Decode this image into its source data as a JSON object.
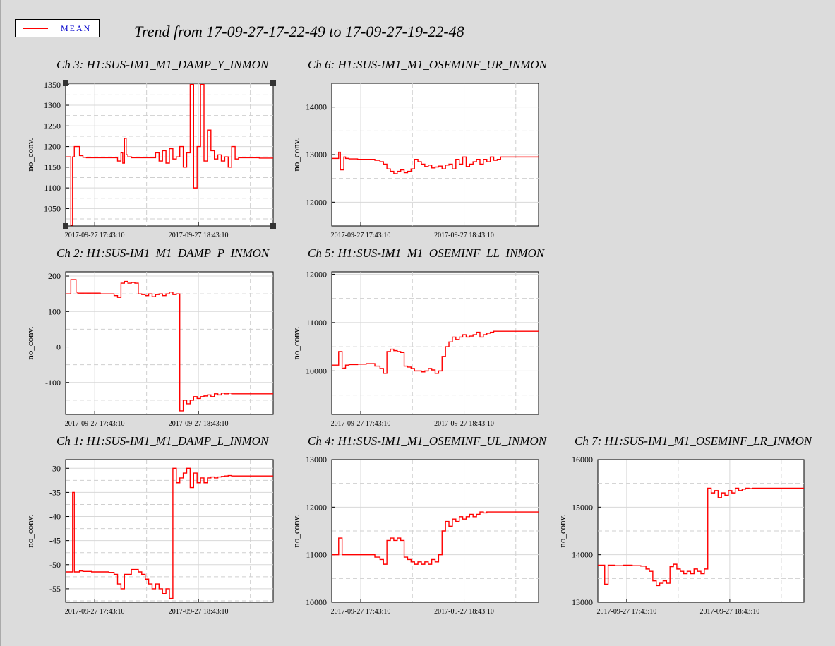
{
  "title": "Trend from 17-09-27-17-22-49 to 17-09-27-19-22-48",
  "legend": {
    "label": "MEAN",
    "color": "#ff0000"
  },
  "colors": {
    "background": "#dcdcdc",
    "series": "#ff0000",
    "plot_bg": "#ffffff"
  },
  "chart_data": [
    {
      "type": "line",
      "title": "Ch 3: H1:SUS-IM1_M1_DAMP_Y_INMON",
      "ylabel": "no_conv.",
      "xlabel": "",
      "x_ticks": [
        "2017-09-27 17:43:10",
        "2017-09-27 18:43:10"
      ],
      "y_ticks": [
        1050,
        1100,
        1150,
        1200,
        1250,
        1300,
        1350
      ],
      "ylim": [
        1008,
        1353
      ],
      "xlim": [
        0,
        120
      ],
      "grid": true,
      "selected": true,
      "series": [
        {
          "name": "MEAN",
          "x": [
            0,
            2,
            3,
            4,
            5,
            6,
            7,
            8,
            10,
            12,
            20,
            28,
            30,
            32,
            33,
            34,
            35,
            36,
            38,
            40,
            43,
            47,
            52,
            54,
            56,
            58,
            60,
            62,
            64,
            66,
            68,
            70,
            72,
            74,
            76,
            78,
            80,
            82,
            84,
            86,
            88,
            90,
            92,
            94,
            96,
            98,
            100,
            104,
            108,
            112,
            116,
            120
          ],
          "values": [
            1175,
            1175,
            1010,
            1175,
            1200,
            1200,
            1200,
            1178,
            1174,
            1173,
            1173,
            1173,
            1165,
            1185,
            1160,
            1220,
            1180,
            1175,
            1173,
            1173,
            1173,
            1173,
            1185,
            1165,
            1190,
            1160,
            1195,
            1170,
            1175,
            1200,
            1150,
            1185,
            1350,
            1100,
            1200,
            1350,
            1165,
            1240,
            1190,
            1170,
            1180,
            1165,
            1175,
            1150,
            1200,
            1170,
            1173,
            1173,
            1173,
            1172,
            1172,
            1172
          ]
        }
      ]
    },
    {
      "type": "line",
      "title": "Ch 6: H1:SUS-IM1_M1_OSEMINF_UR_INMON",
      "ylabel": "no_conv.",
      "xlabel": "",
      "x_ticks": [
        "2017-09-27 17:43:10",
        "2017-09-27 18:43:10"
      ],
      "y_ticks": [
        12000,
        13000,
        14000
      ],
      "ylim": [
        11500,
        14500
      ],
      "xlim": [
        0,
        120
      ],
      "grid": true,
      "series": [
        {
          "name": "MEAN",
          "x": [
            0,
            3,
            4,
            5,
            6,
            7,
            8,
            10,
            15,
            20,
            25,
            28,
            30,
            32,
            34,
            36,
            38,
            40,
            42,
            44,
            46,
            48,
            50,
            52,
            54,
            56,
            58,
            60,
            62,
            64,
            66,
            68,
            70,
            72,
            74,
            76,
            78,
            80,
            82,
            84,
            86,
            88,
            90,
            92,
            94,
            96,
            98,
            100,
            104,
            108,
            112,
            116,
            120
          ],
          "values": [
            12920,
            12920,
            13050,
            12680,
            12680,
            12950,
            12920,
            12910,
            12900,
            12900,
            12880,
            12850,
            12800,
            12700,
            12650,
            12600,
            12650,
            12680,
            12620,
            12650,
            12700,
            12900,
            12850,
            12800,
            12750,
            12780,
            12720,
            12740,
            12760,
            12700,
            12780,
            12800,
            12700,
            12900,
            12800,
            12950,
            12750,
            12800,
            12850,
            12900,
            12800,
            12900,
            12850,
            12950,
            12880,
            12900,
            12950,
            12950,
            12950,
            12950,
            12950,
            12950,
            12950
          ]
        }
      ]
    },
    {
      "type": "line",
      "title": "Ch 2: H1:SUS-IM1_M1_DAMP_P_INMON",
      "ylabel": "no_conv.",
      "xlabel": "",
      "x_ticks": [
        "2017-09-27 17:43:10",
        "2017-09-27 18:43:10"
      ],
      "y_ticks": [
        -100,
        0,
        100,
        200
      ],
      "ylim": [
        -190,
        212
      ],
      "xlim": [
        0,
        120
      ],
      "grid": true,
      "series": [
        {
          "name": "MEAN",
          "x": [
            0,
            2,
            3,
            4,
            5,
            6,
            7,
            10,
            15,
            20,
            25,
            28,
            30,
            32,
            34,
            36,
            38,
            40,
            42,
            44,
            46,
            48,
            50,
            52,
            54,
            56,
            58,
            60,
            62,
            64,
            66,
            68,
            70,
            72,
            74,
            76,
            78,
            80,
            82,
            84,
            86,
            88,
            90,
            92,
            94,
            96,
            98,
            100,
            104,
            108,
            112,
            116,
            120
          ],
          "values": [
            150,
            150,
            190,
            190,
            190,
            155,
            152,
            152,
            152,
            150,
            150,
            145,
            140,
            180,
            185,
            180,
            182,
            180,
            150,
            148,
            145,
            150,
            142,
            148,
            150,
            145,
            150,
            155,
            148,
            150,
            -180,
            -150,
            -160,
            -150,
            -140,
            -145,
            -140,
            -138,
            -135,
            -140,
            -132,
            -135,
            -130,
            -132,
            -130,
            -132,
            -132,
            -132,
            -132,
            -132,
            -132,
            -132,
            -132
          ]
        }
      ]
    },
    {
      "type": "line",
      "title": "Ch 5: H1:SUS-IM1_M1_OSEMINF_LL_INMON",
      "ylabel": "no_conv.",
      "xlabel": "",
      "x_ticks": [
        "2017-09-27 17:43:10",
        "2017-09-27 18:43:10"
      ],
      "y_ticks": [
        10000,
        11000,
        12000
      ],
      "ylim": [
        9100,
        12050
      ],
      "xlim": [
        0,
        120
      ],
      "grid": true,
      "series": [
        {
          "name": "MEAN",
          "x": [
            0,
            3,
            4,
            5,
            6,
            7,
            8,
            10,
            15,
            20,
            25,
            28,
            30,
            32,
            34,
            36,
            38,
            40,
            42,
            44,
            46,
            48,
            50,
            52,
            54,
            56,
            58,
            60,
            62,
            64,
            66,
            68,
            70,
            72,
            74,
            76,
            78,
            80,
            82,
            84,
            86,
            88,
            90,
            92,
            94,
            96,
            98,
            100,
            104,
            108,
            112,
            116,
            120
          ],
          "values": [
            10120,
            10120,
            10400,
            10400,
            10050,
            10060,
            10120,
            10130,
            10140,
            10150,
            10100,
            10050,
            9950,
            10400,
            10450,
            10420,
            10400,
            10380,
            10100,
            10080,
            10050,
            10000,
            10000,
            9980,
            10000,
            10050,
            10020,
            9950,
            10000,
            10300,
            10500,
            10600,
            10700,
            10650,
            10700,
            10750,
            10700,
            10720,
            10750,
            10800,
            10700,
            10750,
            10780,
            10800,
            10820,
            10820,
            10820,
            10820,
            10820,
            10820,
            10820,
            10820,
            10820
          ]
        }
      ]
    },
    {
      "type": "line",
      "title": "Ch 1: H1:SUS-IM1_M1_DAMP_L_INMON",
      "ylabel": "no_conv.",
      "xlabel": "",
      "x_ticks": [
        "2017-09-27 17:43:10",
        "2017-09-27 18:43:10"
      ],
      "y_ticks": [
        -30,
        -35,
        -40,
        -45,
        -50,
        -55
      ],
      "ylim": [
        -57.8,
        -28.2
      ],
      "xlim": [
        0,
        120
      ],
      "grid": true,
      "series": [
        {
          "name": "MEAN",
          "x": [
            0,
            3,
            4,
            5,
            6,
            8,
            10,
            15,
            20,
            25,
            28,
            30,
            32,
            34,
            36,
            38,
            40,
            42,
            44,
            46,
            48,
            50,
            52,
            54,
            56,
            58,
            60,
            62,
            64,
            66,
            68,
            70,
            72,
            74,
            76,
            78,
            80,
            82,
            84,
            86,
            88,
            90,
            92,
            94,
            96,
            98,
            100,
            104,
            108,
            112,
            116,
            120
          ],
          "values": [
            -51.5,
            -51.5,
            -35,
            -51.5,
            -51.5,
            -51.3,
            -51.4,
            -51.5,
            -51.5,
            -51.6,
            -52,
            -54,
            -55,
            -52,
            -52,
            -51,
            -51,
            -51.5,
            -52,
            -53,
            -54,
            -55,
            -54,
            -55,
            -56,
            -55,
            -57,
            -30,
            -33,
            -32,
            -31,
            -30,
            -34,
            -31,
            -33,
            -32,
            -33,
            -32,
            -31.8,
            -32,
            -31.8,
            -31.7,
            -31.6,
            -31.5,
            -31.6,
            -31.6,
            -31.6,
            -31.6,
            -31.6,
            -31.6,
            -31.6,
            -31.6
          ]
        }
      ]
    },
    {
      "type": "line",
      "title": "Ch 4: H1:SUS-IM1_M1_OSEMINF_UL_INMON",
      "ylabel": "no_conv.",
      "xlabel": "",
      "x_ticks": [
        "2017-09-27 17:43:10",
        "2017-09-27 18:43:10"
      ],
      "y_ticks": [
        10000,
        11000,
        12000,
        13000
      ],
      "ylim": [
        10000,
        13000
      ],
      "xlim": [
        0,
        120
      ],
      "grid": true,
      "series": [
        {
          "name": "MEAN",
          "x": [
            0,
            3,
            4,
            5,
            6,
            8,
            10,
            15,
            20,
            25,
            28,
            30,
            32,
            34,
            36,
            38,
            40,
            42,
            44,
            46,
            48,
            50,
            52,
            54,
            56,
            58,
            60,
            62,
            64,
            66,
            68,
            70,
            72,
            74,
            76,
            78,
            80,
            82,
            84,
            86,
            88,
            90,
            92,
            94,
            96,
            98,
            100,
            104,
            108,
            112,
            116,
            120
          ],
          "values": [
            11000,
            11000,
            11350,
            11350,
            11000,
            11000,
            11000,
            11000,
            11000,
            10950,
            10900,
            10800,
            11300,
            11350,
            11300,
            11350,
            11300,
            10950,
            10900,
            10850,
            10800,
            10850,
            10800,
            10850,
            10800,
            10900,
            10850,
            11000,
            11500,
            11700,
            11600,
            11750,
            11700,
            11800,
            11750,
            11800,
            11850,
            11800,
            11850,
            11900,
            11880,
            11900,
            11900,
            11900,
            11900,
            11900,
            11900,
            11900,
            11900,
            11900,
            11900,
            11900
          ]
        }
      ]
    },
    {
      "type": "line",
      "title": "Ch 7: H1:SUS-IM1_M1_OSEMINF_LR_INMON",
      "ylabel": "no_conv.",
      "xlabel": "",
      "x_ticks": [
        "2017-09-27 17:43:10",
        "2017-09-27 18:43:10"
      ],
      "y_ticks": [
        13000,
        14000,
        15000,
        16000
      ],
      "ylim": [
        13000,
        16000
      ],
      "xlim": [
        0,
        120
      ],
      "grid": true,
      "series": [
        {
          "name": "MEAN",
          "x": [
            0,
            3,
            4,
            5,
            6,
            8,
            10,
            15,
            20,
            25,
            28,
            30,
            32,
            34,
            36,
            38,
            40,
            42,
            44,
            46,
            48,
            50,
            52,
            54,
            56,
            58,
            60,
            62,
            64,
            66,
            68,
            70,
            72,
            74,
            76,
            78,
            80,
            82,
            84,
            86,
            88,
            90,
            92,
            94,
            96,
            98,
            100,
            104,
            108,
            112,
            116,
            120
          ],
          "values": [
            13780,
            13780,
            13380,
            13380,
            13780,
            13780,
            13770,
            13780,
            13770,
            13760,
            13700,
            13650,
            13450,
            13350,
            13400,
            13450,
            13400,
            13750,
            13800,
            13700,
            13650,
            13600,
            13650,
            13600,
            13700,
            13650,
            13600,
            13700,
            15400,
            15300,
            15350,
            15200,
            15300,
            15250,
            15350,
            15300,
            15400,
            15350,
            15380,
            15400,
            15390,
            15400,
            15400,
            15400,
            15400,
            15400,
            15400,
            15400,
            15400,
            15400,
            15400,
            15400
          ]
        }
      ]
    }
  ]
}
